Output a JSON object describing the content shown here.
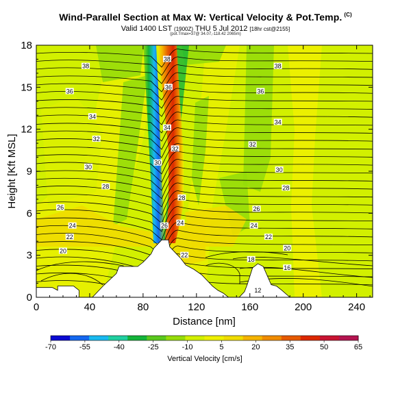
{
  "header": {
    "title": "Wind-Parallel Section at Max W: Vertical Velocity & Pot.Temp.",
    "copyright": "(C)",
    "valid_prefix": "Valid 1400 LST",
    "valid_small": "(1900Z)",
    "valid_date": "THU 5 Jul 2012",
    "valid_suffix": "[18hr cst@2155]",
    "subline": "(pot.Tmax=37@ 34.07,-118.42 2065m)"
  },
  "chart_data": {
    "type": "contour-section",
    "xlabel": "Distance [nm]",
    "ylabel": "Height [Kft MSL]",
    "xlim": [
      0,
      252
    ],
    "ylim": [
      0,
      18
    ],
    "xticks": [
      0,
      40,
      80,
      120,
      160,
      200,
      240
    ],
    "yticks": [
      0,
      3,
      6,
      9,
      12,
      15,
      18
    ],
    "colorbar": {
      "label": "Vertical Velocity [cm/s]",
      "ticks": [
        -70,
        -55,
        -40,
        -25,
        -10,
        5,
        20,
        35,
        50,
        65
      ],
      "colors": [
        "#0a0ad2",
        "#1468f0",
        "#19b9f0",
        "#21cfa0",
        "#14b43a",
        "#5ac81e",
        "#96dc0a",
        "#d2f000",
        "#eef000",
        "#f0dc00",
        "#f5b400",
        "#f08c00",
        "#e65a00",
        "#dc2800",
        "#c81432",
        "#b41450"
      ]
    },
    "theta_contours": [
      12,
      14,
      16,
      18,
      20,
      22,
      24,
      26,
      28,
      30,
      32,
      34,
      36,
      38
    ],
    "contour_labels": [
      {
        "text": "38",
        "x": 37,
        "y": 16.5
      },
      {
        "text": "38",
        "x": 98,
        "y": 17.0
      },
      {
        "text": "38",
        "x": 181,
        "y": 16.5
      },
      {
        "text": "36",
        "x": 25,
        "y": 14.7
      },
      {
        "text": "36",
        "x": 99,
        "y": 15.0
      },
      {
        "text": "36",
        "x": 168,
        "y": 14.7
      },
      {
        "text": "34",
        "x": 42,
        "y": 12.9
      },
      {
        "text": "34",
        "x": 98,
        "y": 12.1
      },
      {
        "text": "34",
        "x": 181,
        "y": 12.5
      },
      {
        "text": "32",
        "x": 45,
        "y": 11.3
      },
      {
        "text": "32",
        "x": 104,
        "y": 10.6
      },
      {
        "text": "32",
        "x": 162,
        "y": 10.9
      },
      {
        "text": "30",
        "x": 39,
        "y": 9.3
      },
      {
        "text": "30",
        "x": 91,
        "y": 9.6
      },
      {
        "text": "30",
        "x": 182,
        "y": 9.1
      },
      {
        "text": "28",
        "x": 52,
        "y": 7.9
      },
      {
        "text": "28",
        "x": 109,
        "y": 7.1
      },
      {
        "text": "28",
        "x": 187,
        "y": 7.8
      },
      {
        "text": "26",
        "x": 18,
        "y": 6.4
      },
      {
        "text": "26",
        "x": 96,
        "y": 5.1
      },
      {
        "text": "26",
        "x": 165,
        "y": 6.3
      },
      {
        "text": "24",
        "x": 27,
        "y": 5.1
      },
      {
        "text": "24",
        "x": 108,
        "y": 5.3
      },
      {
        "text": "24",
        "x": 163,
        "y": 5.1
      },
      {
        "text": "22",
        "x": 25,
        "y": 4.3
      },
      {
        "text": "22",
        "x": 174,
        "y": 4.3
      },
      {
        "text": "22",
        "x": 111,
        "y": 3.0
      },
      {
        "text": "20",
        "x": 20,
        "y": 3.3
      },
      {
        "text": "20",
        "x": 188,
        "y": 3.5
      },
      {
        "text": "18",
        "x": 161,
        "y": 2.7
      },
      {
        "text": "16",
        "x": 188,
        "y": 2.1
      },
      {
        "text": "12",
        "x": 166,
        "y": 0.5
      }
    ],
    "terrain": [
      [
        0,
        0.7
      ],
      [
        12,
        0.7
      ],
      [
        16,
        0.5
      ],
      [
        16,
        0.8
      ],
      [
        28,
        0.8
      ],
      [
        32,
        0.5
      ],
      [
        32,
        0
      ],
      [
        42,
        0
      ],
      [
        50,
        0.8
      ],
      [
        60,
        1.7
      ],
      [
        62,
        2.2
      ],
      [
        76,
        2.2
      ],
      [
        80,
        2.5
      ],
      [
        82,
        2.7
      ],
      [
        86,
        3.1
      ],
      [
        88,
        3.5
      ],
      [
        90,
        3.7
      ],
      [
        94,
        4.1
      ],
      [
        99,
        4.1
      ],
      [
        100,
        3.6
      ],
      [
        104,
        3.2
      ],
      [
        108,
        2.8
      ],
      [
        112,
        2.3
      ],
      [
        118,
        2.0
      ],
      [
        124,
        1.6
      ],
      [
        128,
        1.2
      ],
      [
        132,
        0.8
      ],
      [
        136,
        0.5
      ],
      [
        140,
        0.3
      ],
      [
        144,
        0
      ],
      [
        152,
        0
      ],
      [
        156,
        0.4
      ],
      [
        158,
        0.9
      ],
      [
        162,
        2.1
      ],
      [
        166,
        2.4
      ],
      [
        170,
        2.2
      ],
      [
        176,
        0.9
      ],
      [
        180,
        0.8
      ],
      [
        184,
        0.5
      ],
      [
        190,
        0
      ],
      [
        252,
        0
      ]
    ]
  }
}
